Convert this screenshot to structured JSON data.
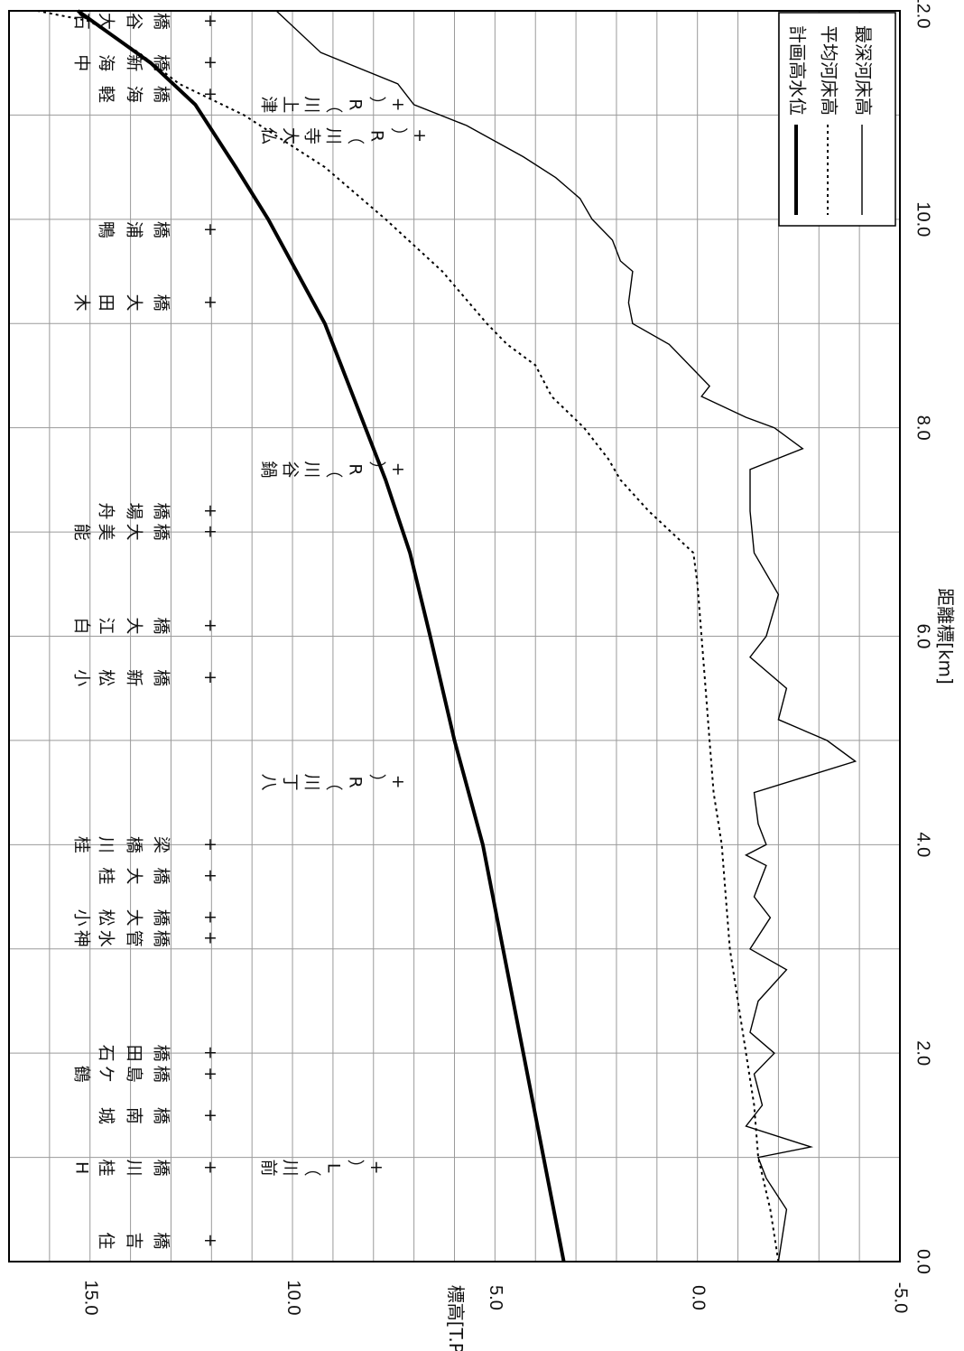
{
  "chart_data": {
    "type": "line",
    "orientation": "rotated-90-clockwise",
    "xlabel": "距離標[km]",
    "ylabel": "標高[T.P.m]",
    "xlim": [
      0.0,
      12.0
    ],
    "ylim": [
      -5.0,
      17.0
    ],
    "x_ticks": [
      "0.0",
      "2.0",
      "4.0",
      "6.0",
      "8.0",
      "10.0",
      "12.0"
    ],
    "y_ticks": [
      "-5.0",
      "0.0",
      "5.0",
      "10.0",
      "15.0"
    ],
    "grid": true,
    "legend_position": "top-right",
    "series": [
      {
        "name": "計画高水位",
        "style": "thick-solid",
        "x": [
          0.0,
          1.0,
          2.0,
          3.0,
          4.0,
          5.0,
          6.0,
          6.8,
          7.5,
          8.0,
          8.6,
          9.0,
          9.5,
          10.0,
          10.5,
          11.1,
          11.5,
          12.0
        ],
        "y": [
          3.3,
          3.8,
          4.3,
          4.8,
          5.3,
          6.0,
          6.6,
          7.1,
          7.7,
          8.2,
          8.8,
          9.2,
          9.9,
          10.6,
          11.4,
          12.4,
          13.5,
          15.3
        ]
      },
      {
        "name": "平均河床高",
        "style": "dotted",
        "x": [
          0.0,
          0.5,
          1.0,
          1.5,
          2.0,
          2.5,
          3.0,
          3.5,
          4.0,
          4.5,
          5.0,
          5.5,
          6.0,
          6.5,
          6.8,
          7.2,
          7.5,
          7.7,
          8.0,
          8.3,
          8.6,
          8.8,
          9.0,
          9.5,
          10.0,
          10.5,
          11.0,
          11.3,
          11.6,
          11.9,
          12.0
        ],
        "y": [
          -2.0,
          -1.8,
          -1.5,
          -1.4,
          -1.2,
          -1.0,
          -0.8,
          -0.7,
          -0.6,
          -0.4,
          -0.3,
          -0.2,
          -0.1,
          0.0,
          0.1,
          1.2,
          1.9,
          2.2,
          2.8,
          3.6,
          4.0,
          4.7,
          5.2,
          6.3,
          7.7,
          9.2,
          11.2,
          12.8,
          13.8,
          15.0,
          16.3
        ]
      },
      {
        "name": "最深河床高",
        "style": "thin-solid",
        "x": [
          0.0,
          0.5,
          0.8,
          1.0,
          1.1,
          1.3,
          1.5,
          1.8,
          2.0,
          2.2,
          2.5,
          2.8,
          3.0,
          3.3,
          3.5,
          3.8,
          3.9,
          4.0,
          4.2,
          4.5,
          4.8,
          5.0,
          5.2,
          5.5,
          5.8,
          6.0,
          6.4,
          6.8,
          7.2,
          7.6,
          7.8,
          8.0,
          8.1,
          8.3,
          8.4,
          8.6,
          8.8,
          9.0,
          9.2,
          9.5,
          9.6,
          9.8,
          10.0,
          10.2,
          10.4,
          10.6,
          10.9,
          11.1,
          11.3,
          11.6,
          12.0
        ],
        "y": [
          -2.0,
          -2.2,
          -1.7,
          -1.5,
          -2.8,
          -1.2,
          -1.6,
          -1.4,
          -1.9,
          -1.3,
          -1.5,
          -2.2,
          -1.3,
          -1.8,
          -1.4,
          -1.7,
          -1.2,
          -1.7,
          -1.5,
          -1.4,
          -3.9,
          -3.2,
          -2.0,
          -2.2,
          -1.3,
          -1.7,
          -2.0,
          -1.4,
          -1.3,
          -1.3,
          -2.6,
          -1.9,
          -1.2,
          -0.1,
          -0.3,
          0.2,
          0.7,
          1.6,
          1.7,
          1.6,
          1.9,
          2.1,
          2.6,
          2.9,
          3.5,
          4.3,
          5.7,
          7.0,
          7.4,
          9.3,
          10.4
        ]
      }
    ],
    "bridges": [
      {
        "km": 0.2,
        "name": "住吉橋"
      },
      {
        "km": 0.9,
        "name": "JH桂川橋"
      },
      {
        "km": 1.4,
        "name": "城南橋"
      },
      {
        "km": 1.8,
        "name": "鶴ケ島橋"
      },
      {
        "km": 2.0,
        "name": "石田橋"
      },
      {
        "km": 3.1,
        "name": "天神水管橋"
      },
      {
        "km": 3.3,
        "name": "小松大橋"
      },
      {
        "km": 3.7,
        "name": "桂大橋"
      },
      {
        "km": 4.0,
        "name": "JR桂川橋梁"
      },
      {
        "km": 5.6,
        "name": "小松新橋"
      },
      {
        "km": 6.1,
        "name": "白江大橋"
      },
      {
        "km": 7.0,
        "name": "能美大橋"
      },
      {
        "km": 7.2,
        "name": "舟場橋"
      },
      {
        "km": 9.2,
        "name": "荒木田大橋"
      },
      {
        "km": 9.9,
        "name": "鴨浦橋"
      },
      {
        "km": 11.2,
        "name": "軽海橋"
      },
      {
        "km": 11.5,
        "name": "中海新橋"
      },
      {
        "km": 11.9,
        "name": "百石大谷橋"
      }
    ],
    "tributaries": [
      {
        "km": 0.9,
        "name": "前川",
        "bank": "L"
      },
      {
        "km": 4.6,
        "name": "八丁川",
        "bank": "R"
      },
      {
        "km": 7.6,
        "name": "鍋谷川",
        "bank": "R"
      },
      {
        "km": 10.8,
        "name": "仏大寺川",
        "bank": "R"
      },
      {
        "km": 11.1,
        "name": "津上川",
        "bank": "R"
      }
    ]
  }
}
